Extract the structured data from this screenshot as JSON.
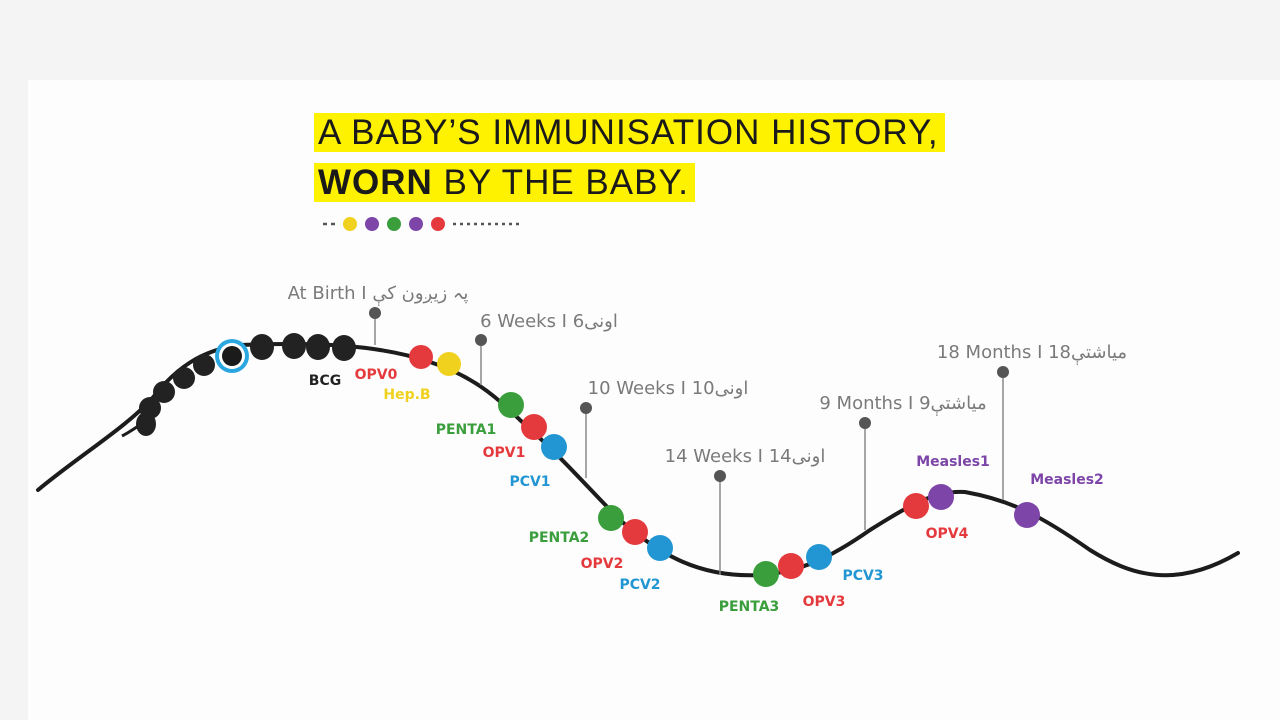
{
  "headline": {
    "line1": "A BABY’S IMMUNISATION HISTORY,",
    "line2_bold": "WORN",
    "line2_rest": " BY THE BABY."
  },
  "colors": {
    "highlight": "#fff200",
    "cord": "#1c1c1c",
    "pin": "#555555",
    "red": "#e53a3d",
    "yellow": "#f0d21e",
    "green": "#3a9e3c",
    "blue": "#2296d2",
    "purple": "#7d45a8",
    "black": "#222222"
  },
  "legend_dots": [
    "yellow",
    "purple",
    "green",
    "purple",
    "red"
  ],
  "milestones": [
    {
      "id": "at-birth",
      "text": "At Birth I پہ زیږون کې"
    },
    {
      "id": "6-weeks",
      "text": "6 Weeks I 6اونی"
    },
    {
      "id": "10-weeks",
      "text": "10 Weeks I  10اونی"
    },
    {
      "id": "14-weeks",
      "text": "14 Weeks I 14اونی"
    },
    {
      "id": "9-months",
      "text": "9 Months I 9میاشتې"
    },
    {
      "id": "18-months",
      "text": "18 Months I 18میاشتې"
    }
  ],
  "vaccines": [
    {
      "id": "bcg",
      "text": "BCG",
      "color": "black"
    },
    {
      "id": "opv0",
      "text": "OPV0",
      "color": "red"
    },
    {
      "id": "hepb",
      "text": "Hep.B",
      "color": "yellow"
    },
    {
      "id": "penta1",
      "text": "PENTA1",
      "color": "green"
    },
    {
      "id": "opv1",
      "text": "OPV1",
      "color": "red"
    },
    {
      "id": "pcv1",
      "text": "PCV1",
      "color": "blue"
    },
    {
      "id": "penta2",
      "text": "PENTA2",
      "color": "green"
    },
    {
      "id": "opv2",
      "text": "OPV2",
      "color": "red"
    },
    {
      "id": "pcv2",
      "text": "PCV2",
      "color": "blue"
    },
    {
      "id": "penta3",
      "text": "PENTA3",
      "color": "green"
    },
    {
      "id": "opv3",
      "text": "OPV3",
      "color": "red"
    },
    {
      "id": "pcv3",
      "text": "PCV3",
      "color": "blue"
    },
    {
      "id": "opv4",
      "text": "OPV4",
      "color": "red"
    },
    {
      "id": "measles1",
      "text": "Measles1",
      "color": "purple"
    },
    {
      "id": "measles2",
      "text": "Measles2",
      "color": "purple"
    }
  ]
}
